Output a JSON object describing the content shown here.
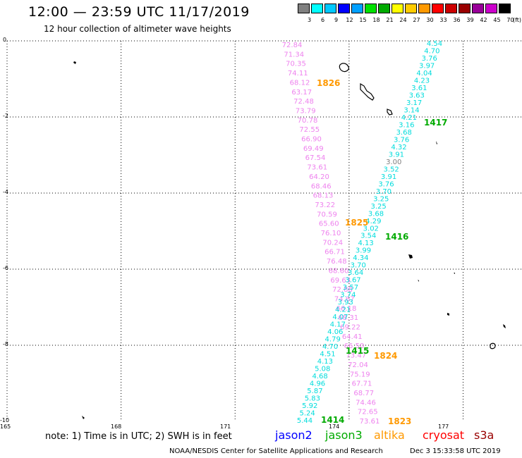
{
  "title": "12:00 — 23:59 UTC 11/17/2019",
  "subtitle": "12 hour collection of altimeter wave heights",
  "scale": {
    "colors": [
      "#808080",
      "#00ffff",
      "#00c8ff",
      "#0000ff",
      "#00a0ff",
      "#00e100",
      "#00aa00",
      "#ffff00",
      "#ffcc00",
      "#ff9900",
      "#ff0000",
      "#cc0000",
      "#990000",
      "#990099",
      "#cc00cc",
      "#000000"
    ],
    "labels": [
      "3",
      "6",
      "9",
      "12",
      "15",
      "18",
      "21",
      "24",
      "27",
      "30",
      "33",
      "36",
      "39",
      "42",
      "45",
      "70"
    ],
    "unit": "(ft)"
  },
  "y_ticks": [
    "0",
    "-2",
    "-4",
    "-6",
    "-8",
    "-10"
  ],
  "x_ticks": [
    "165",
    "168",
    "171",
    "174",
    "177"
  ],
  "map": {
    "lon_range": [
      165,
      179
    ],
    "lat_range": [
      -10,
      0
    ],
    "grid_lon": [
      168,
      171,
      174,
      177
    ],
    "grid_lat": [
      -2,
      -4,
      -6,
      -8
    ],
    "land_icon": "island-outline"
  },
  "tracks": {
    "pink": {
      "color": "#ee82ee",
      "values": [
        "72.84",
        "71.34",
        "70.35",
        "74.11",
        "68.12",
        "63.17",
        "72.48",
        "73.79",
        "70.78",
        "72.55",
        "66.90",
        "69.49",
        "67.54",
        "73.61",
        "64.20",
        "68.46",
        "68.13",
        "73.22",
        "70.59",
        "65.60",
        "76.10",
        "70.24",
        "66.71",
        "76.48",
        "68.60",
        "69.63",
        "72.88",
        "74.67",
        "66.18",
        "68.31",
        "69.22",
        "64.41",
        "66.50",
        "73.47",
        "72.04",
        "75.19",
        "67.71",
        "68.77",
        "74.46",
        "72.65",
        "73.61"
      ]
    },
    "cyan_ascending": {
      "color": "#00dcdc",
      "values": [
        "4.54",
        "4.70",
        "3.76",
        "3.97",
        "4.04",
        "4.23",
        "3.61",
        "3.63",
        "3.17",
        "3.14",
        "4.21",
        "3.16",
        "3.68",
        "3.76",
        "4.32",
        "3.91",
        "3.00",
        "3.52",
        "3.91",
        "3.76",
        "3.70",
        "3.25",
        "3.25",
        "3.68",
        "4.29",
        "3.02",
        "3.54",
        "4.13",
        "3.99",
        "4.34",
        "3.70",
        "3.64",
        "3.67",
        "3.57",
        "3.74",
        "3.93",
        "4.21",
        "4.07",
        "4.17",
        "4.06",
        "4.79",
        "4.70",
        "4.51",
        "4.13",
        "5.08",
        "4.68",
        "4.96",
        "5.87",
        "5.83",
        "5.92",
        "5.24",
        "5.44"
      ],
      "highlight_value": "3.00",
      "highlight_color": "#808080"
    }
  },
  "time_labels": [
    {
      "text": "1826",
      "color": "#ff9900"
    },
    {
      "text": "1825",
      "color": "#ff9900"
    },
    {
      "text": "1824",
      "color": "#ff9900"
    },
    {
      "text": "1823",
      "color": "#ff9900"
    },
    {
      "text": "1417",
      "color": "#00aa00"
    },
    {
      "text": "1416",
      "color": "#00aa00"
    },
    {
      "text": "1415",
      "color": "#00aa00"
    },
    {
      "text": "1414",
      "color": "#00aa00"
    }
  ],
  "note": "note: 1) Time is in UTC; 2) SWH is in feet",
  "legend": [
    {
      "text": "jason2",
      "color": "#0000ff"
    },
    {
      "text": "jason3",
      "color": "#00aa00"
    },
    {
      "text": "altika",
      "color": "#ff9900"
    },
    {
      "text": "cryosat",
      "color": "#ff0000"
    },
    {
      "text": "s3a",
      "color": "#990000"
    }
  ],
  "credit": "NOAA/NESDIS Center for Satellite Applications and Research",
  "timestamp": "Dec  3 15:33:58 UTC 2019"
}
